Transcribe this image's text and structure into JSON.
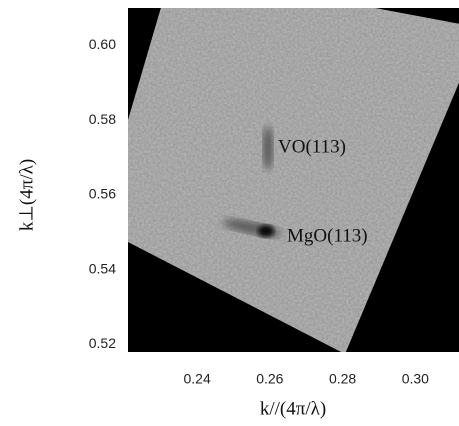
{
  "chart_data": {
    "type": "map",
    "x_label": "k//(4π/λ)",
    "y_label": "k⊥(4π/λ)",
    "xlim": [
      0.221,
      0.312
    ],
    "ylim": [
      0.518,
      0.61
    ],
    "xticks": [
      0.24,
      0.26,
      0.28,
      {
        "value": 0.3,
        "label": "0.30"
      }
    ],
    "yticks": [
      {
        "value": 0.6,
        "label": "0.60"
      },
      0.58,
      0.56,
      0.54,
      0.52
    ],
    "annotations": [
      "VO(113)",
      "MgO(113)"
    ]
  }
}
